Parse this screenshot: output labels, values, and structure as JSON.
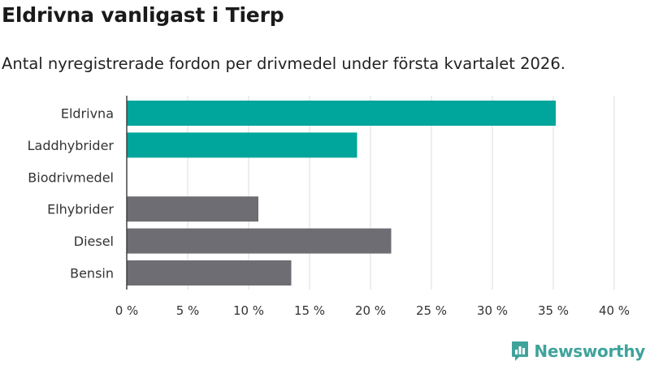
{
  "header": {
    "title": "Eldrivna vanligast i Tierp",
    "subtitle": "Antal nyregistrerade fordon per drivmedel under första kvartalet 2026."
  },
  "logo": {
    "text": "Newsworthy",
    "icon": "bar-chart-speech-bubble-icon",
    "color": "#3fa39b"
  },
  "chart_data": {
    "type": "bar",
    "orientation": "horizontal",
    "categories": [
      "Eldrivna",
      "Laddhybrider",
      "Biodrivmedel",
      "Elhybrider",
      "Diesel",
      "Bensin"
    ],
    "values": [
      35.2,
      18.9,
      0,
      10.8,
      21.7,
      13.5
    ],
    "bar_colors": [
      "#00a59b",
      "#00a59b",
      "#00a59b",
      "#6e6d73",
      "#6e6d73",
      "#6e6d73"
    ],
    "xlim": [
      0,
      40
    ],
    "xticks": [
      0,
      5,
      10,
      15,
      20,
      25,
      30,
      35,
      40
    ],
    "xtick_labels": [
      "0 %",
      "5 %",
      "10 %",
      "15 %",
      "20 %",
      "25 %",
      "30 %",
      "35 %",
      "40 %"
    ],
    "grid": "vertical",
    "legend": "none"
  }
}
